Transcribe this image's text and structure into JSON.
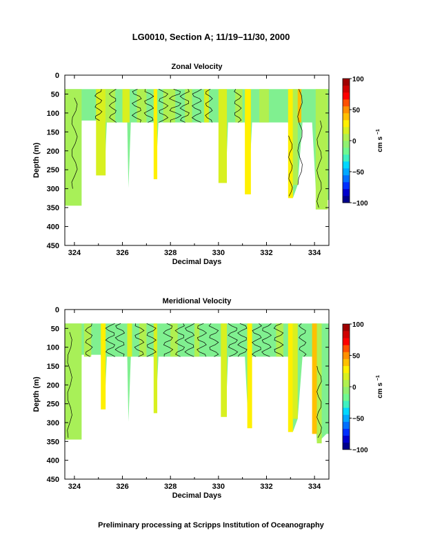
{
  "figure": {
    "title": "LG0010, Section A; 11/19–11/30, 2000",
    "footer": "Preliminary processing at Scripps Institution of Oceanography"
  },
  "colorbar": {
    "label": "cm s",
    "label_exponent": "−1",
    "ticks": [
      "100",
      "50",
      "0",
      "−50",
      "−100"
    ],
    "range": [
      -100,
      100
    ],
    "colors": [
      "#00008b",
      "#0000cd",
      "#0030ff",
      "#0070ff",
      "#00a8ff",
      "#00d8ff",
      "#40f0c0",
      "#70f890",
      "#90f070",
      "#b0f050",
      "#d8f020",
      "#fff000",
      "#ffc000",
      "#ff9000",
      "#ff5000",
      "#ff0000",
      "#d00000",
      "#a00000"
    ]
  },
  "chart_data": [
    {
      "type": "heatmap",
      "title": "Zonal Velocity",
      "xlabel": "Decimal Days",
      "ylabel": "Depth (m)",
      "xlim": [
        323.6,
        334.6
      ],
      "ylim": [
        450,
        0
      ],
      "xticks": [
        "324",
        "326",
        "328",
        "330",
        "332",
        "334"
      ],
      "yticks": [
        "0",
        "50",
        "100",
        "150",
        "200",
        "250",
        "300",
        "350",
        "400",
        "450"
      ],
      "data_top_depth": 37,
      "base_color": "#80f090",
      "profiles": [
        {
          "t": 323.6,
          "max_depth": 240
        },
        {
          "t": 323.75,
          "max_depth": 345
        },
        {
          "t": 324.2,
          "max_depth": 335
        },
        {
          "t": 324.3,
          "max_depth": 120
        },
        {
          "t": 325.1,
          "max_depth": 120
        },
        {
          "t": 325.25,
          "max_depth": 265
        },
        {
          "t": 325.35,
          "max_depth": 125
        },
        {
          "t": 326.2,
          "max_depth": 125
        },
        {
          "t": 326.25,
          "max_depth": 298
        },
        {
          "t": 326.35,
          "max_depth": 125
        },
        {
          "t": 327.3,
          "max_depth": 125
        },
        {
          "t": 327.38,
          "max_depth": 275
        },
        {
          "t": 327.5,
          "max_depth": 125
        },
        {
          "t": 330.2,
          "max_depth": 125
        },
        {
          "t": 330.3,
          "max_depth": 285
        },
        {
          "t": 330.4,
          "max_depth": 125
        },
        {
          "t": 331.1,
          "max_depth": 125
        },
        {
          "t": 331.25,
          "max_depth": 315
        },
        {
          "t": 331.4,
          "max_depth": 125
        },
        {
          "t": 332.9,
          "max_depth": 125
        },
        {
          "t": 333.1,
          "max_depth": 325
        },
        {
          "t": 333.3,
          "max_depth": 290
        },
        {
          "t": 333.5,
          "max_depth": 125
        },
        {
          "t": 333.9,
          "max_depth": 125
        },
        {
          "t": 334.1,
          "max_depth": 355
        },
        {
          "t": 334.5,
          "max_depth": 330
        }
      ],
      "bands": [
        {
          "t0": 323.6,
          "t1": 324.3,
          "d0": 37,
          "d1": 345,
          "color": "#a8f058"
        },
        {
          "t0": 324.9,
          "t1": 325.3,
          "d0": 37,
          "d1": 265,
          "color": "#d8f020"
        },
        {
          "t0": 325.3,
          "t1": 325.7,
          "d0": 37,
          "d1": 125,
          "color": "#b0f050"
        },
        {
          "t0": 326.0,
          "t1": 326.3,
          "d0": 37,
          "d1": 125,
          "color": "#d8f020"
        },
        {
          "t0": 326.6,
          "t1": 327.0,
          "d0": 37,
          "d1": 125,
          "color": "#b0f050"
        },
        {
          "t0": 327.3,
          "t1": 327.45,
          "d0": 37,
          "d1": 275,
          "color": "#fff000"
        },
        {
          "t0": 327.7,
          "t1": 328.2,
          "d0": 37,
          "d1": 125,
          "color": "#b0f050"
        },
        {
          "t0": 328.6,
          "t1": 328.9,
          "d0": 37,
          "d1": 125,
          "color": "#b0f050"
        },
        {
          "t0": 329.4,
          "t1": 329.6,
          "d0": 37,
          "d1": 125,
          "color": "#d8f020"
        },
        {
          "t0": 330.0,
          "t1": 330.35,
          "d0": 37,
          "d1": 285,
          "color": "#d8f020"
        },
        {
          "t0": 330.7,
          "t1": 331.0,
          "d0": 37,
          "d1": 125,
          "color": "#b0f050"
        },
        {
          "t0": 331.1,
          "t1": 331.35,
          "d0": 37,
          "d1": 315,
          "color": "#fff000"
        },
        {
          "t0": 331.7,
          "t1": 332.1,
          "d0": 37,
          "d1": 125,
          "color": "#b0f050"
        },
        {
          "t0": 332.9,
          "t1": 333.1,
          "d0": 37,
          "d1": 325,
          "color": "#fff000"
        },
        {
          "t0": 333.1,
          "t1": 333.3,
          "d0": 37,
          "d1": 290,
          "color": "#b0f050"
        },
        {
          "t0": 333.3,
          "t1": 333.45,
          "d0": 37,
          "d1": 125,
          "color": "#ffc000"
        },
        {
          "t0": 334.05,
          "t1": 334.55,
          "d0": 37,
          "d1": 355,
          "color": "#b0f050"
        }
      ],
      "contours": [
        {
          "t": 324.0,
          "d0": 60,
          "d1": 300,
          "amp": 0.12
        },
        {
          "t": 325.0,
          "d0": 37,
          "d1": 120,
          "amp": 0.15
        },
        {
          "t": 325.6,
          "d0": 37,
          "d1": 125,
          "amp": 0.15
        },
        {
          "t": 326.6,
          "d0": 37,
          "d1": 125,
          "amp": 0.2
        },
        {
          "t": 327.1,
          "d0": 37,
          "d1": 125,
          "amp": 0.2
        },
        {
          "t": 327.7,
          "d0": 37,
          "d1": 125,
          "amp": 0.2
        },
        {
          "t": 328.2,
          "d0": 37,
          "d1": 125,
          "amp": 0.25
        },
        {
          "t": 328.6,
          "d0": 37,
          "d1": 125,
          "amp": 0.2
        },
        {
          "t": 329.1,
          "d0": 37,
          "d1": 125,
          "amp": 0.2
        },
        {
          "t": 329.6,
          "d0": 37,
          "d1": 125,
          "amp": 0.15
        },
        {
          "t": 330.8,
          "d0": 37,
          "d1": 125,
          "amp": 0.15
        },
        {
          "t": 333.0,
          "d0": 160,
          "d1": 320,
          "amp": 0.08
        },
        {
          "t": 333.4,
          "d0": 37,
          "d1": 290,
          "amp": 0.1
        },
        {
          "t": 334.2,
          "d0": 120,
          "d1": 350,
          "amp": 0.1
        }
      ]
    },
    {
      "type": "heatmap",
      "title": "Meridional Velocity",
      "xlabel": "Decimal Days",
      "ylabel": "Depth (m)",
      "xlim": [
        323.6,
        334.6
      ],
      "ylim": [
        450,
        0
      ],
      "xticks": [
        "324",
        "326",
        "328",
        "330",
        "332",
        "334"
      ],
      "yticks": [
        "0",
        "50",
        "100",
        "150",
        "200",
        "250",
        "300",
        "350",
        "400",
        "450"
      ],
      "data_top_depth": 37,
      "base_color": "#80f090",
      "profiles": [
        {
          "t": 323.6,
          "max_depth": 240
        },
        {
          "t": 323.75,
          "max_depth": 345
        },
        {
          "t": 324.2,
          "max_depth": 335
        },
        {
          "t": 324.3,
          "max_depth": 120
        },
        {
          "t": 325.1,
          "max_depth": 120
        },
        {
          "t": 325.25,
          "max_depth": 265
        },
        {
          "t": 325.35,
          "max_depth": 125
        },
        {
          "t": 326.2,
          "max_depth": 125
        },
        {
          "t": 326.25,
          "max_depth": 298
        },
        {
          "t": 326.35,
          "max_depth": 125
        },
        {
          "t": 327.3,
          "max_depth": 125
        },
        {
          "t": 327.38,
          "max_depth": 275
        },
        {
          "t": 327.5,
          "max_depth": 125
        },
        {
          "t": 330.2,
          "max_depth": 125
        },
        {
          "t": 330.3,
          "max_depth": 285
        },
        {
          "t": 330.4,
          "max_depth": 125
        },
        {
          "t": 331.1,
          "max_depth": 125
        },
        {
          "t": 331.25,
          "max_depth": 315
        },
        {
          "t": 331.4,
          "max_depth": 125
        },
        {
          "t": 332.9,
          "max_depth": 125
        },
        {
          "t": 333.1,
          "max_depth": 325
        },
        {
          "t": 333.3,
          "max_depth": 290
        },
        {
          "t": 333.5,
          "max_depth": 125
        },
        {
          "t": 333.9,
          "max_depth": 125
        },
        {
          "t": 334.1,
          "max_depth": 355
        },
        {
          "t": 334.5,
          "max_depth": 330
        }
      ],
      "bands": [
        {
          "t0": 323.6,
          "t1": 324.3,
          "d0": 37,
          "d1": 345,
          "color": "#a8f058"
        },
        {
          "t0": 324.4,
          "t1": 324.7,
          "d0": 37,
          "d1": 125,
          "color": "#b0f050"
        },
        {
          "t0": 325.1,
          "t1": 325.3,
          "d0": 37,
          "d1": 265,
          "color": "#fff000"
        },
        {
          "t0": 326.2,
          "t1": 326.4,
          "d0": 37,
          "d1": 125,
          "color": "#d8f020"
        },
        {
          "t0": 326.7,
          "t1": 327.0,
          "d0": 37,
          "d1": 125,
          "color": "#b0f050"
        },
        {
          "t0": 327.3,
          "t1": 327.45,
          "d0": 37,
          "d1": 275,
          "color": "#d8f020"
        },
        {
          "t0": 328.0,
          "t1": 328.3,
          "d0": 37,
          "d1": 125,
          "color": "#b0f050"
        },
        {
          "t0": 329.0,
          "t1": 329.2,
          "d0": 37,
          "d1": 125,
          "color": "#b0f050"
        },
        {
          "t0": 330.1,
          "t1": 330.35,
          "d0": 37,
          "d1": 285,
          "color": "#d8f020"
        },
        {
          "t0": 331.2,
          "t1": 331.4,
          "d0": 37,
          "d1": 315,
          "color": "#fff000"
        },
        {
          "t0": 332.4,
          "t1": 332.7,
          "d0": 37,
          "d1": 125,
          "color": "#b0f050"
        },
        {
          "t0": 332.9,
          "t1": 333.1,
          "d0": 37,
          "d1": 325,
          "color": "#fff000"
        },
        {
          "t0": 333.1,
          "t1": 333.3,
          "d0": 37,
          "d1": 290,
          "color": "#d8f020"
        },
        {
          "t0": 333.9,
          "t1": 334.1,
          "d0": 37,
          "d1": 330,
          "color": "#ffc000"
        },
        {
          "t0": 334.1,
          "t1": 334.3,
          "d0": 37,
          "d1": 355,
          "color": "#b0f050"
        }
      ],
      "contours": [
        {
          "t": 323.8,
          "d0": 60,
          "d1": 340,
          "amp": 0.1
        },
        {
          "t": 324.6,
          "d0": 37,
          "d1": 125,
          "amp": 0.15
        },
        {
          "t": 325.5,
          "d0": 37,
          "d1": 125,
          "amp": 0.2
        },
        {
          "t": 325.9,
          "d0": 37,
          "d1": 125,
          "amp": 0.2
        },
        {
          "t": 326.7,
          "d0": 37,
          "d1": 125,
          "amp": 0.2
        },
        {
          "t": 327.2,
          "d0": 37,
          "d1": 125,
          "amp": 0.2
        },
        {
          "t": 327.9,
          "d0": 37,
          "d1": 125,
          "amp": 0.2
        },
        {
          "t": 328.4,
          "d0": 37,
          "d1": 125,
          "amp": 0.2
        },
        {
          "t": 328.8,
          "d0": 37,
          "d1": 125,
          "amp": 0.2
        },
        {
          "t": 329.3,
          "d0": 37,
          "d1": 125,
          "amp": 0.2
        },
        {
          "t": 329.8,
          "d0": 37,
          "d1": 125,
          "amp": 0.2
        },
        {
          "t": 330.6,
          "d0": 37,
          "d1": 125,
          "amp": 0.2
        },
        {
          "t": 331.0,
          "d0": 37,
          "d1": 125,
          "amp": 0.2
        },
        {
          "t": 331.6,
          "d0": 37,
          "d1": 125,
          "amp": 0.2
        },
        {
          "t": 332.0,
          "d0": 37,
          "d1": 125,
          "amp": 0.2
        },
        {
          "t": 332.5,
          "d0": 37,
          "d1": 125,
          "amp": 0.2
        },
        {
          "t": 333.5,
          "d0": 37,
          "d1": 125,
          "amp": 0.15
        },
        {
          "t": 334.2,
          "d0": 150,
          "d1": 340,
          "amp": 0.1
        }
      ]
    }
  ]
}
